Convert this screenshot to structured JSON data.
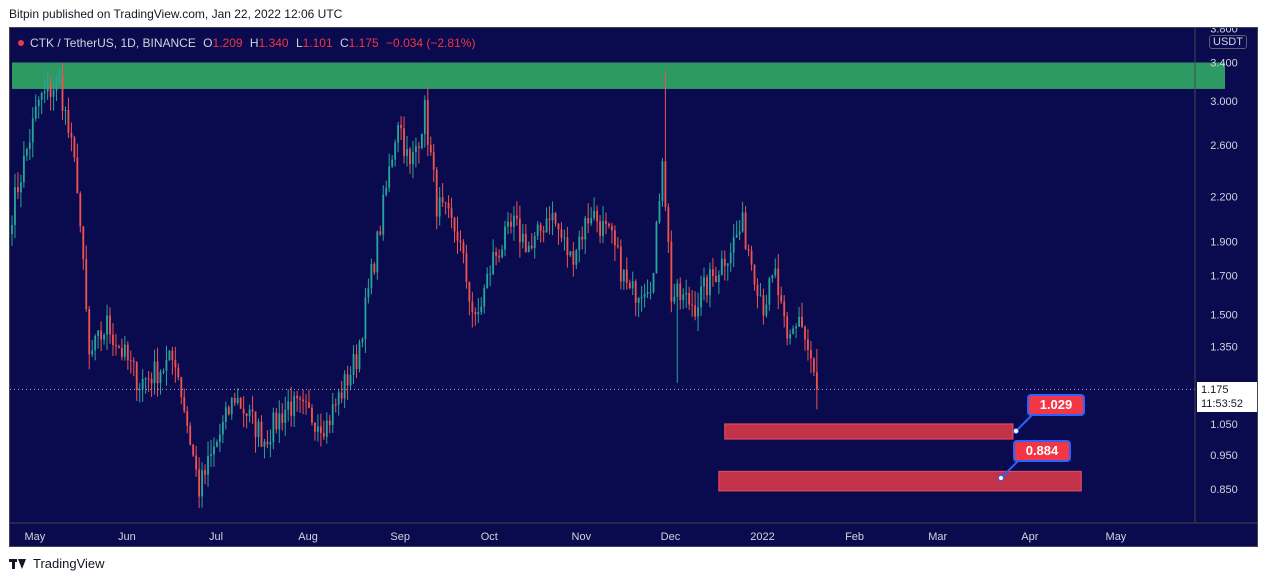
{
  "caption": "Bitpin published on TradingView.com, Jan 22, 2022 12:06 UTC",
  "symbol": {
    "pair": "CTK / TetherUS, 1D, BINANCE",
    "open_key": "O",
    "open": "1.209",
    "high_key": "H",
    "high": "1.340",
    "low_key": "L",
    "low": "1.101",
    "close_key": "C",
    "close": "1.175",
    "change": "−0.034 (−2.81%)"
  },
  "currency_badge": "USDT",
  "last_price": {
    "price": "1.175",
    "countdown": "11:53:52"
  },
  "callouts": [
    {
      "label": "1.029"
    },
    {
      "label": "0.884"
    }
  ],
  "footer": {
    "brand": "TradingView"
  },
  "colors": {
    "background": "#0a0a4e",
    "up": "#26a69a",
    "down": "#ef5350",
    "green_zone": "#2e9a63",
    "red_zone": "#c2334a",
    "accent": "#2962ff"
  },
  "chart_data": {
    "type": "candlestick",
    "scale": "log",
    "y_ticks": [
      "3.800",
      "3.400",
      "3.000",
      "2.600",
      "2.200",
      "1.900",
      "1.700",
      "1.500",
      "1.350",
      "1.050",
      "0.950",
      "0.850"
    ],
    "x_ticks": [
      "May",
      "Jun",
      "Jul",
      "Aug",
      "Sep",
      "Oct",
      "Nov",
      "Dec",
      "2022",
      "Feb",
      "Mar",
      "Apr",
      "May"
    ],
    "ylim": [
      0.78,
      3.8
    ],
    "last_close": 1.175,
    "zones": [
      {
        "name": "resistance",
        "from": 3.12,
        "to": 3.4,
        "x_start": "Apr 26",
        "x_end": "open"
      },
      {
        "name": "support-1",
        "from": 1.0,
        "to": 1.05,
        "x_start": "Dec 22",
        "x_end": "Mar 29"
      },
      {
        "name": "support-2",
        "from": 0.845,
        "to": 0.9,
        "x_start": "Dec 20",
        "x_end": "Apr 21"
      }
    ],
    "anchors": [
      {
        "date": "Apr 26",
        "close": 2.1
      },
      {
        "date": "May 5",
        "close": 3.0
      },
      {
        "date": "May 12",
        "close": 3.2
      },
      {
        "date": "May 18",
        "close": 2.3
      },
      {
        "date": "May 22",
        "close": 1.3
      },
      {
        "date": "May 28",
        "close": 1.45
      },
      {
        "date": "Jun 8",
        "close": 1.2
      },
      {
        "date": "Jun 20",
        "close": 1.3
      },
      {
        "date": "Jun 28",
        "close": 0.85
      },
      {
        "date": "Jul 10",
        "close": 1.15
      },
      {
        "date": "Jul 20",
        "close": 1.0
      },
      {
        "date": "Jul 28",
        "close": 1.12
      },
      {
        "date": "Aug 10",
        "close": 1.05
      },
      {
        "date": "Aug 20",
        "close": 1.3
      },
      {
        "date": "Aug 28",
        "close": 2.0
      },
      {
        "date": "Sep 3",
        "close": 2.85
      },
      {
        "date": "Sep 7",
        "close": 2.4
      },
      {
        "date": "Sep 12",
        "close": 2.9
      },
      {
        "date": "Sep 16",
        "close": 2.15
      },
      {
        "date": "Sep 23",
        "close": 1.95
      },
      {
        "date": "Sep 29",
        "close": 1.45
      },
      {
        "date": "Oct 5",
        "close": 1.8
      },
      {
        "date": "Oct 12",
        "close": 2.0
      },
      {
        "date": "Oct 18",
        "close": 1.85
      },
      {
        "date": "Oct 24",
        "close": 2.1
      },
      {
        "date": "Oct 31",
        "close": 1.8
      },
      {
        "date": "Nov 7",
        "close": 2.1
      },
      {
        "date": "Nov 14",
        "close": 1.9
      },
      {
        "date": "Nov 20",
        "close": 1.6
      },
      {
        "date": "Nov 28",
        "close": 1.7
      },
      {
        "date": "Dec 1",
        "close": 2.55
      },
      {
        "date": "Dec 4",
        "close": 1.6
      },
      {
        "date": "Dec 12",
        "close": 1.55
      },
      {
        "date": "Dec 20",
        "close": 1.75
      },
      {
        "date": "Dec 28",
        "close": 2.0
      },
      {
        "date": "Jan 4",
        "close": 1.55
      },
      {
        "date": "Jan 8",
        "close": 1.7
      },
      {
        "date": "Jan 12",
        "close": 1.35
      },
      {
        "date": "Jan 16",
        "close": 1.5
      },
      {
        "date": "Jan 22",
        "close": 1.175
      }
    ]
  }
}
